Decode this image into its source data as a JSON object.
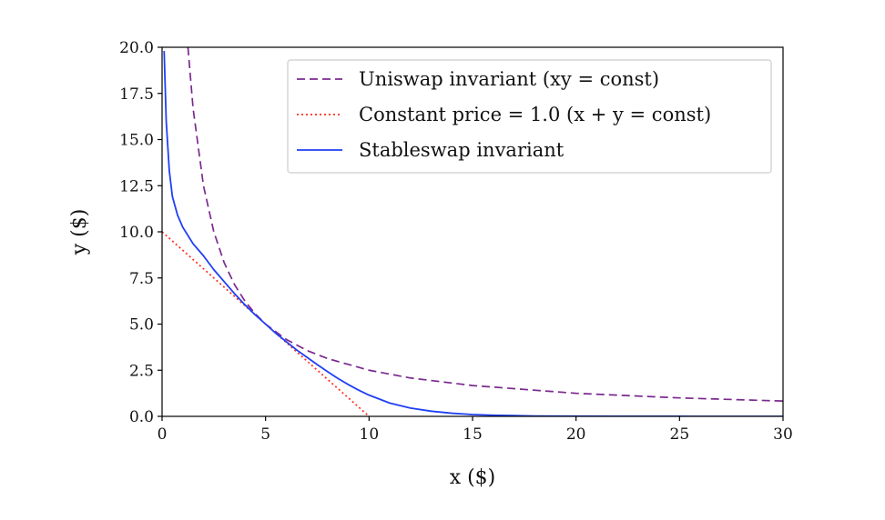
{
  "chart_data": {
    "type": "line",
    "title": "",
    "xlabel": "x ($)",
    "ylabel": "y ($)",
    "xlim": [
      0,
      30
    ],
    "ylim": [
      0,
      20
    ],
    "x_ticks": [
      0,
      5,
      10,
      15,
      20,
      25,
      30
    ],
    "x_tick_labels": [
      "0",
      "5",
      "10",
      "15",
      "20",
      "25",
      "30"
    ],
    "y_ticks": [
      0,
      2.5,
      5,
      7.5,
      10,
      12.5,
      15,
      17.5,
      20
    ],
    "y_tick_labels": [
      "0.0",
      "2.5",
      "5.0",
      "7.5",
      "10.0",
      "12.5",
      "15.0",
      "17.5",
      "20.0"
    ],
    "grid": false,
    "legend_position": "top-right",
    "series": [
      {
        "name": "Uniswap invariant (xy = const)",
        "color": "#7b2a8f",
        "style": "dashed",
        "x": [
          1.25,
          1.5,
          2,
          2.5,
          3,
          3.5,
          4,
          4.5,
          5,
          6,
          7,
          8,
          10,
          12,
          15,
          20,
          25,
          30
        ],
        "y": [
          20,
          16.67,
          12.5,
          10,
          8.33,
          7.14,
          6.25,
          5.56,
          5,
          4.17,
          3.57,
          3.13,
          2.5,
          2.08,
          1.67,
          1.25,
          1,
          0.83
        ]
      },
      {
        "name": "Constant price = 1.0 (x + y = const)",
        "color": "#ff2a1a",
        "style": "dotted",
        "x": [
          0,
          10
        ],
        "y": [
          10,
          0
        ]
      },
      {
        "name": "Stableswap invariant",
        "color": "#1f3ff5",
        "style": "solid",
        "x": [
          0.1,
          0.2,
          0.35,
          0.5,
          0.75,
          1,
          1.5,
          2,
          2.5,
          3,
          3.5,
          4,
          4.5,
          5,
          5.5,
          6,
          6.5,
          7,
          7.5,
          8,
          8.5,
          9,
          9.5,
          10,
          11,
          12,
          13,
          14,
          15,
          16,
          17,
          18,
          20,
          22,
          25,
          30
        ],
        "y": [
          19.8,
          16,
          13.3,
          11.9,
          10.9,
          10.25,
          9.35,
          8.7,
          7.95,
          7.3,
          6.65,
          6.05,
          5.5,
          5,
          4.5,
          4.05,
          3.6,
          3.2,
          2.8,
          2.42,
          2.05,
          1.72,
          1.42,
          1.15,
          0.72,
          0.45,
          0.28,
          0.17,
          0.1,
          0.06,
          0.04,
          0.02,
          0.01,
          0.005,
          0.002,
          0.001
        ]
      }
    ]
  }
}
